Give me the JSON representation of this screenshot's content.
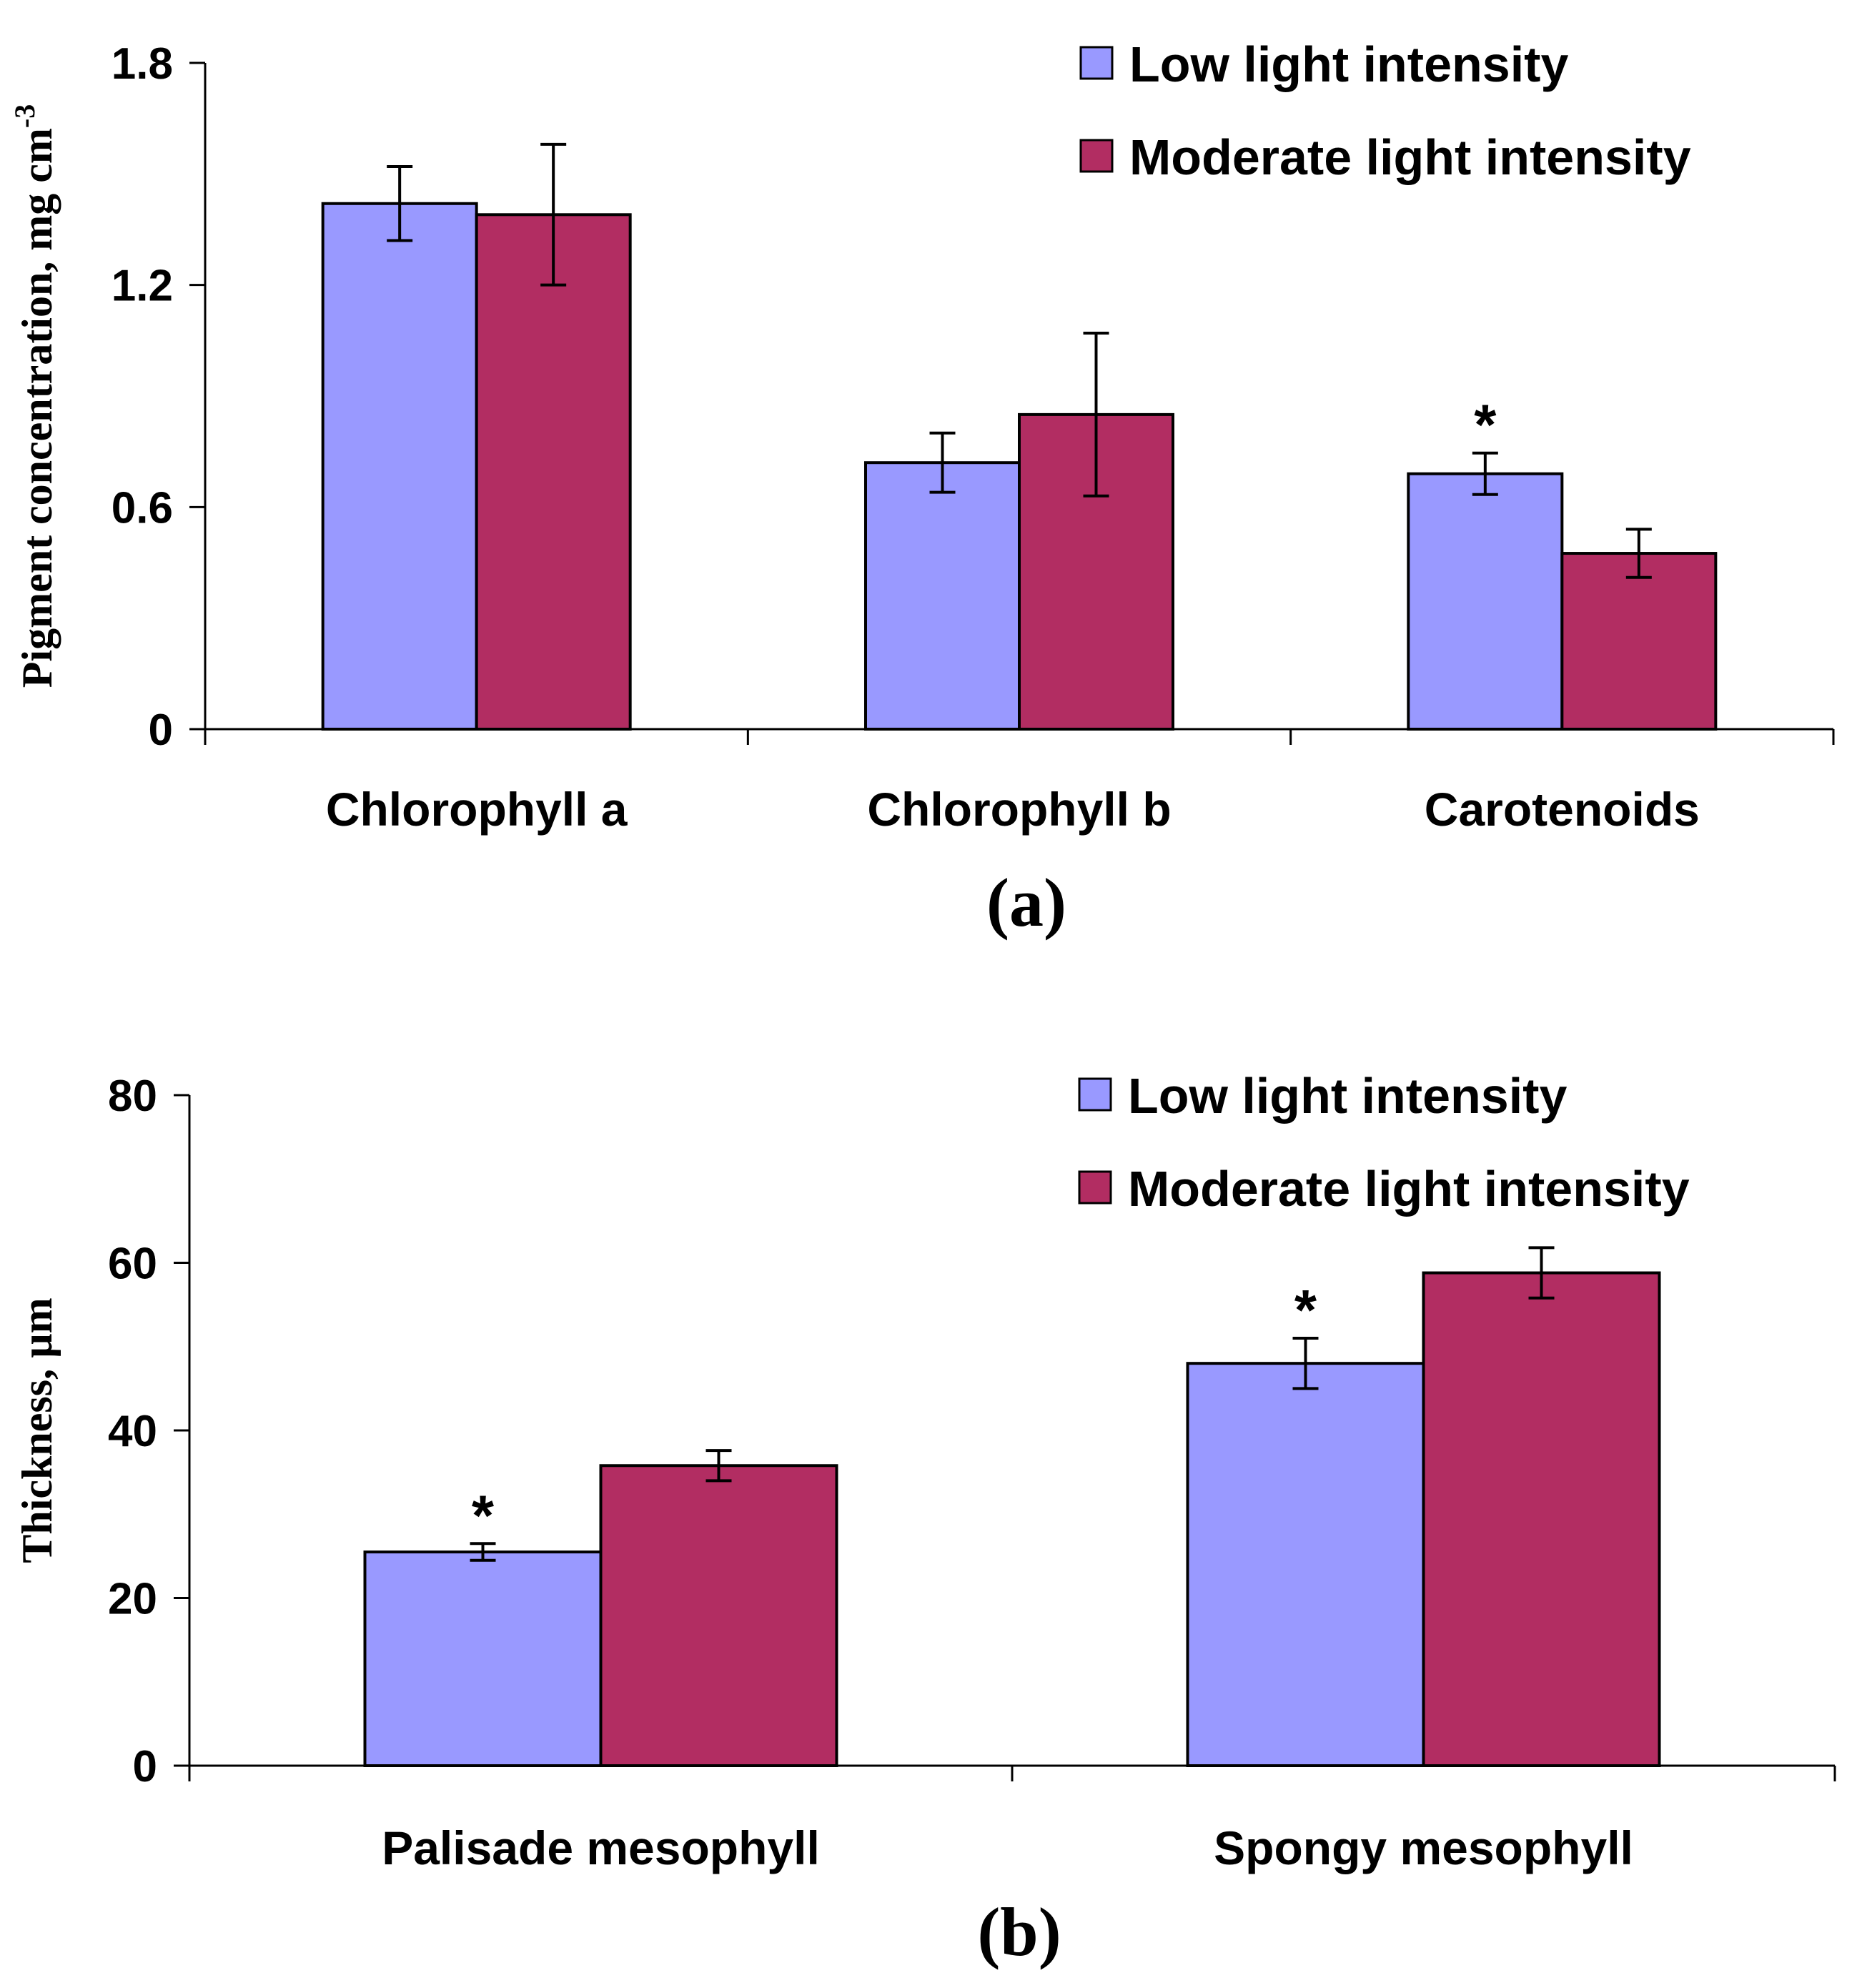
{
  "chart_data": [
    {
      "type": "bar",
      "panel_label": "(a)",
      "ylabel": "Pigment concentration, mg cm",
      "ylabel_superscript": "-3",
      "ylim": [
        0,
        1.8
      ],
      "yticks": [
        "0",
        "0.6",
        "1.2",
        "1.8"
      ],
      "yticks_values": [
        0,
        0.6,
        1.2,
        1.8
      ],
      "categories": [
        "Chlorophyll a",
        "Chlorophyll b",
        "Carotenoids"
      ],
      "legend_position": "top-right",
      "series": [
        {
          "name": "Low light intensity",
          "color": "#9999ff",
          "values": [
            1.42,
            0.72,
            0.69
          ],
          "errors": [
            0.1,
            0.08,
            0.056
          ],
          "significant": [
            false,
            false,
            true
          ]
        },
        {
          "name": "Moderate light intensity",
          "color": "#b22d62",
          "values": [
            1.39,
            0.85,
            0.475
          ],
          "errors": [
            0.19,
            0.22,
            0.065
          ],
          "significant": [
            false,
            false,
            false
          ]
        }
      ],
      "annotation_mark": "*"
    },
    {
      "type": "bar",
      "panel_label": "(b)",
      "ylabel": "Thickness, µm",
      "ylabel_superscript": "",
      "ylim": [
        0,
        80
      ],
      "yticks": [
        "0",
        "20",
        "40",
        "60",
        "80"
      ],
      "yticks_values": [
        0,
        20,
        40,
        60,
        80
      ],
      "categories": [
        "Palisade mesophyll",
        "Spongy mesophyll"
      ],
      "legend_position": "top-right",
      "series": [
        {
          "name": "Low light intensity",
          "color": "#9999ff",
          "values": [
            25.5,
            48
          ],
          "errors": [
            1.0,
            3.0
          ],
          "significant": [
            true,
            true
          ]
        },
        {
          "name": "Moderate light intensity",
          "color": "#b22d62",
          "values": [
            35.8,
            58.8
          ],
          "errors": [
            1.8,
            3.0
          ],
          "significant": [
            false,
            false
          ]
        }
      ],
      "annotation_mark": "*"
    }
  ]
}
